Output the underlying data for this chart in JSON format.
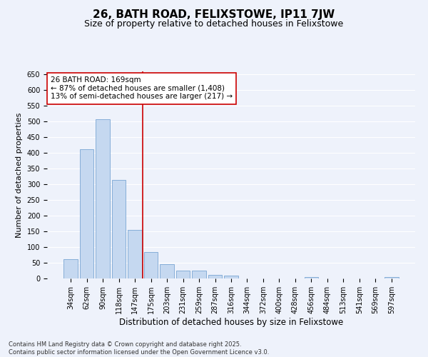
{
  "title": "26, BATH ROAD, FELIXSTOWE, IP11 7JW",
  "subtitle": "Size of property relative to detached houses in Felixstowe",
  "xlabel": "Distribution of detached houses by size in Felixstowe",
  "ylabel": "Number of detached properties",
  "categories": [
    "34sqm",
    "62sqm",
    "90sqm",
    "118sqm",
    "147sqm",
    "175sqm",
    "203sqm",
    "231sqm",
    "259sqm",
    "287sqm",
    "316sqm",
    "344sqm",
    "372sqm",
    "400sqm",
    "428sqm",
    "456sqm",
    "484sqm",
    "513sqm",
    "541sqm",
    "569sqm",
    "597sqm"
  ],
  "values": [
    62,
    411,
    507,
    313,
    155,
    84,
    46,
    25,
    25,
    11,
    8,
    0,
    0,
    0,
    0,
    5,
    0,
    0,
    0,
    0,
    5
  ],
  "bar_color": "#c5d8f0",
  "bar_edge_color": "#6699cc",
  "background_color": "#eef2fb",
  "grid_color": "#ffffff",
  "vline_x": 4.5,
  "vline_color": "#cc0000",
  "annotation_title": "26 BATH ROAD: 169sqm",
  "annotation_line1": "← 87% of detached houses are smaller (1,408)",
  "annotation_line2": "13% of semi-detached houses are larger (217) →",
  "annotation_box_color": "#ffffff",
  "annotation_box_edge_color": "#cc0000",
  "ylim": [
    0,
    660
  ],
  "yticks": [
    0,
    50,
    100,
    150,
    200,
    250,
    300,
    350,
    400,
    450,
    500,
    550,
    600,
    650
  ],
  "footer_line1": "Contains HM Land Registry data © Crown copyright and database right 2025.",
  "footer_line2": "Contains public sector information licensed under the Open Government Licence v3.0.",
  "title_fontsize": 11,
  "subtitle_fontsize": 9,
  "xlabel_fontsize": 8.5,
  "ylabel_fontsize": 8,
  "tick_fontsize": 7,
  "annotation_fontsize": 7.5,
  "footer_fontsize": 6
}
